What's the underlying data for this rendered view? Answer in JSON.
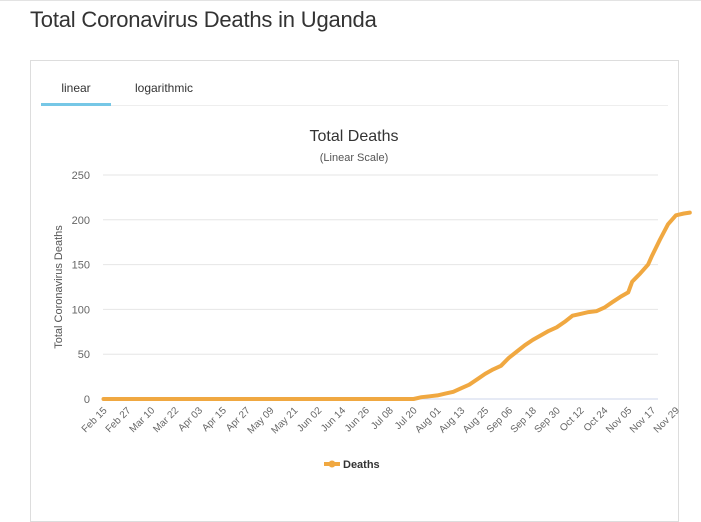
{
  "page": {
    "title": "Total Coronavirus Deaths in Uganda"
  },
  "tabs": [
    {
      "label": "linear",
      "active": true
    },
    {
      "label": "logarithmic",
      "active": false
    }
  ],
  "colors": {
    "series": "#f0a841",
    "grid": "#e6e6e6",
    "tab_accent": "#76c7e6"
  },
  "chart_data": {
    "type": "line",
    "title": "Total Deaths",
    "subtitle": "(Linear Scale)",
    "ylabel": "Total Coronavirus Deaths",
    "xlabel": "",
    "ylim": [
      0,
      250
    ],
    "yticks": [
      0,
      50,
      100,
      150,
      200,
      250
    ],
    "xticks": [
      "Feb 15",
      "Feb 27",
      "Mar 10",
      "Mar 22",
      "Apr 03",
      "Apr 15",
      "Apr 27",
      "May 09",
      "May 21",
      "Jun 02",
      "Jun 14",
      "Jun 26",
      "Jul 08",
      "Jul 20",
      "Aug 01",
      "Aug 13",
      "Aug 25",
      "Sep 06",
      "Sep 18",
      "Sep 30",
      "Oct 12",
      "Oct 24",
      "Nov 05",
      "Nov 17",
      "Nov 29"
    ],
    "legend": {
      "position": "bottom-center"
    },
    "series": [
      {
        "name": "Deaths",
        "points": [
          [
            "Feb 15",
            0
          ],
          [
            "Jul 20",
            0
          ],
          [
            "Jul 24",
            2
          ],
          [
            "Jul 28",
            3
          ],
          [
            "Aug 01",
            4
          ],
          [
            "Aug 05",
            6
          ],
          [
            "Aug 09",
            8
          ],
          [
            "Aug 13",
            12
          ],
          [
            "Aug 17",
            16
          ],
          [
            "Aug 21",
            22
          ],
          [
            "Aug 25",
            28
          ],
          [
            "Aug 29",
            33
          ],
          [
            "Sep 02",
            37
          ],
          [
            "Sep 06",
            46
          ],
          [
            "Sep 10",
            53
          ],
          [
            "Sep 14",
            60
          ],
          [
            "Sep 18",
            66
          ],
          [
            "Sep 22",
            71
          ],
          [
            "Sep 26",
            76
          ],
          [
            "Sep 30",
            80
          ],
          [
            "Oct 04",
            86
          ],
          [
            "Oct 08",
            93
          ],
          [
            "Oct 12",
            95
          ],
          [
            "Oct 16",
            97
          ],
          [
            "Oct 20",
            98
          ],
          [
            "Oct 24",
            102
          ],
          [
            "Oct 28",
            108
          ],
          [
            "Nov 01",
            114
          ],
          [
            "Nov 05",
            119
          ],
          [
            "Nov 07",
            131
          ],
          [
            "Nov 11",
            140
          ],
          [
            "Nov 15",
            150
          ],
          [
            "Nov 17",
            160
          ],
          [
            "Nov 21",
            178
          ],
          [
            "Nov 25",
            195
          ],
          [
            "Nov 29",
            205
          ],
          [
            "Dec 03",
            207
          ],
          [
            "Dec 06",
            208
          ]
        ]
      }
    ]
  }
}
